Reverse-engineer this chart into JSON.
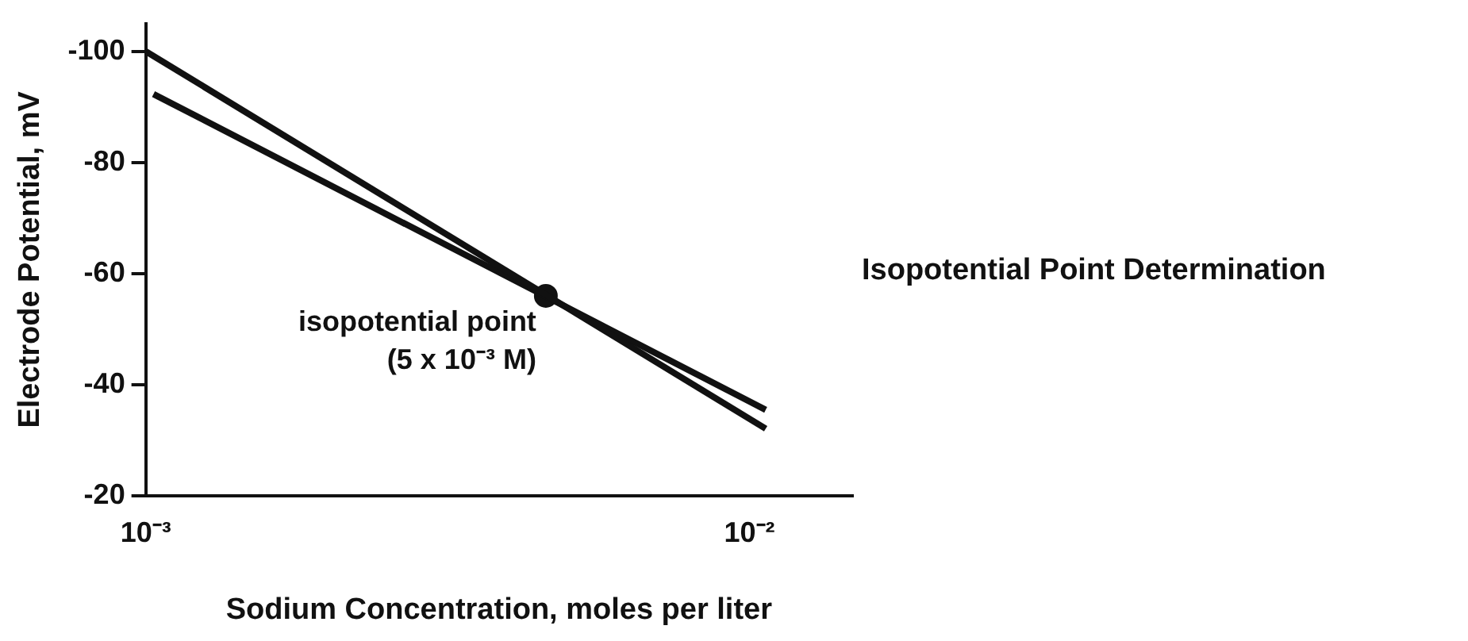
{
  "chart_data": {
    "type": "line",
    "title": "Isopotential Point Determination",
    "xlabel": "Sodium Concentration, moles per liter",
    "ylabel": "Electrode Potential, mV",
    "log": "x",
    "xlim": [
      0.001,
      0.0148
    ],
    "xticks": [
      {
        "value": 0.001,
        "label": "10⁻³"
      },
      {
        "value": 0.01,
        "label": "10⁻²"
      }
    ],
    "ylim": [
      -20,
      -105
    ],
    "yticks": [
      -100,
      -80,
      -60,
      -40,
      -20
    ],
    "series": [
      {
        "color": "#111111",
        "x": [
          0.001,
          0.01064
        ],
        "values": [
          -100,
          -32.1
        ]
      },
      {
        "color": "#111111",
        "x": [
          0.00103,
          0.01064
        ],
        "values": [
          -92.3,
          -35.5
        ]
      },
      {
        "type": "scatter",
        "color": "#111111",
        "x": [
          0.0046
        ],
        "values": [
          -56
        ],
        "marker": "circle"
      }
    ],
    "annotations": [
      {
        "text": "isopotential point",
        "x": 0.0046,
        "y": -56
      },
      {
        "text": "(5 x 10⁻³ M)",
        "x": 0.0046,
        "y": -56
      }
    ],
    "legend": false
  }
}
